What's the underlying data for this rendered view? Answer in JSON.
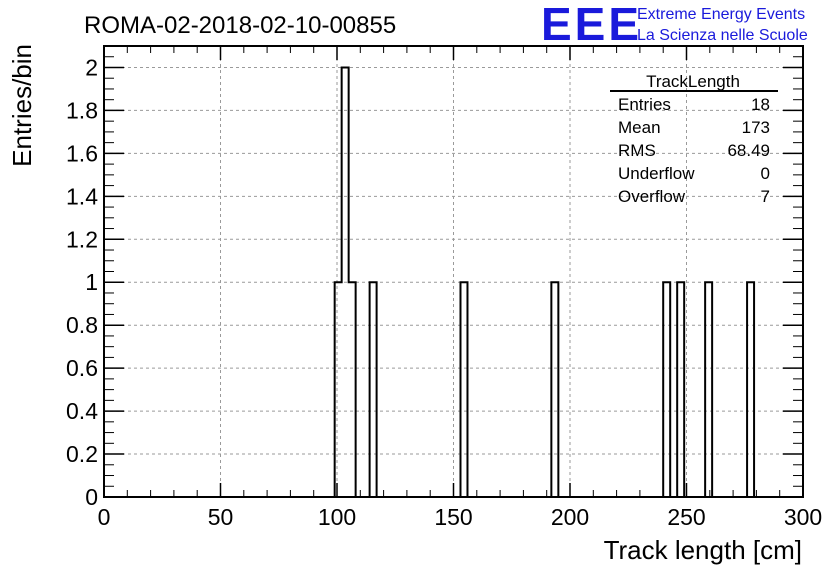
{
  "run_title": "ROMA-02-2018-02-10-00855",
  "logo": {
    "mark": "EEE",
    "line1": "Extreme Energy Events",
    "line2": "La Scienza nelle Scuole",
    "color": "#1a1adb"
  },
  "stats_box": {
    "title": "TrackLength",
    "rows": [
      {
        "label": "Entries",
        "value": "18"
      },
      {
        "label": "Mean",
        "value": "173"
      },
      {
        "label": "RMS",
        "value": "68.49"
      },
      {
        "label": "Underflow",
        "value": "0"
      },
      {
        "label": "Overflow",
        "value": "7"
      }
    ]
  },
  "chart_data": {
    "type": "bar",
    "histogram": true,
    "xlabel": "Track length [cm]",
    "ylabel": "Entries/bin",
    "xlim": [
      0,
      300
    ],
    "ylim": [
      0,
      2.1
    ],
    "grid": true,
    "bin_width": 3,
    "x_ticks": [
      "0",
      "50",
      "100",
      "150",
      "200",
      "250",
      "300"
    ],
    "y_ticks": [
      "0",
      "0.2",
      "0.4",
      "0.6",
      "0.8",
      "1",
      "1.2",
      "1.4",
      "1.6",
      "1.8",
      "2"
    ],
    "bins": [
      {
        "x0": 99,
        "x1": 102,
        "count": 1
      },
      {
        "x0": 102,
        "x1": 105,
        "count": 2
      },
      {
        "x0": 105,
        "x1": 108,
        "count": 1
      },
      {
        "x0": 114,
        "x1": 117,
        "count": 1
      },
      {
        "x0": 153,
        "x1": 156,
        "count": 1
      },
      {
        "x0": 192,
        "x1": 195,
        "count": 1
      },
      {
        "x0": 240,
        "x1": 243,
        "count": 1
      },
      {
        "x0": 246,
        "x1": 249,
        "count": 1
      },
      {
        "x0": 258,
        "x1": 261,
        "count": 1
      },
      {
        "x0": 276,
        "x1": 279,
        "count": 1
      }
    ]
  }
}
